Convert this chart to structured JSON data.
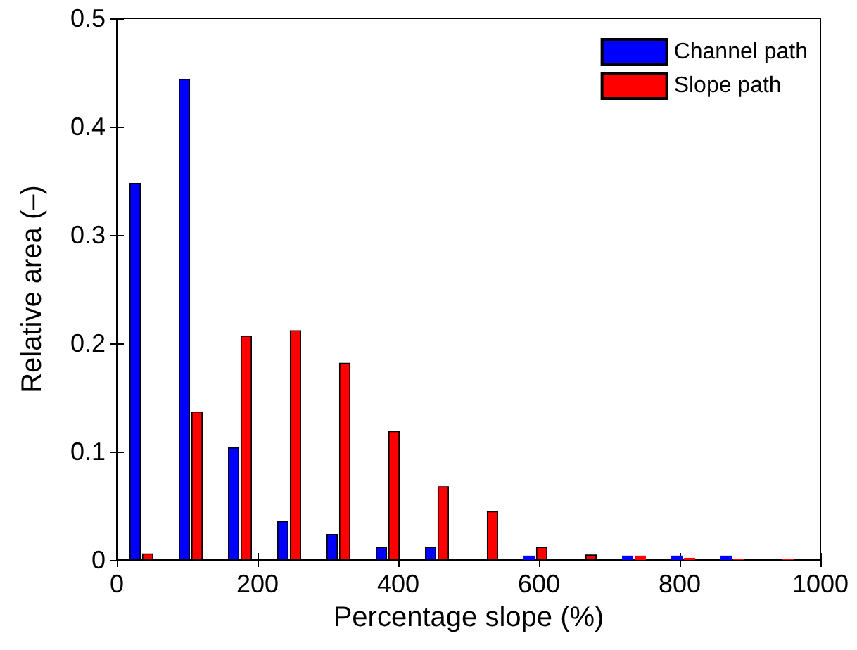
{
  "chart_data": {
    "type": "bar",
    "xlabel": "Percentage slope (%)",
    "ylabel": "Relative area (–)",
    "x": [
      35,
      105,
      175,
      245,
      315,
      385,
      455,
      525,
      595,
      665,
      735,
      805,
      875,
      945
    ],
    "series": [
      {
        "name": "Channel path",
        "color": "#0000ff",
        "values": [
          0.348,
          0.444,
          0.104,
          0.036,
          0.024,
          0.012,
          0.012,
          0,
          0.004,
          0,
          0.004,
          0.004,
          0.004,
          0
        ]
      },
      {
        "name": "Slope path",
        "color": "#ff0000",
        "values": [
          0.006,
          0.137,
          0.207,
          0.212,
          0.182,
          0.119,
          0.068,
          0.045,
          0.012,
          0.005,
          0.004,
          0.002,
          0.001,
          0.001
        ]
      }
    ],
    "xlim": [
      0,
      1000
    ],
    "xticks": [
      0,
      200,
      400,
      600,
      800,
      1000
    ],
    "ylim": [
      0,
      0.5
    ],
    "yticks": [
      0,
      0.1,
      0.2,
      0.3,
      0.4,
      0.5
    ],
    "grid": false,
    "legend": "top right"
  }
}
